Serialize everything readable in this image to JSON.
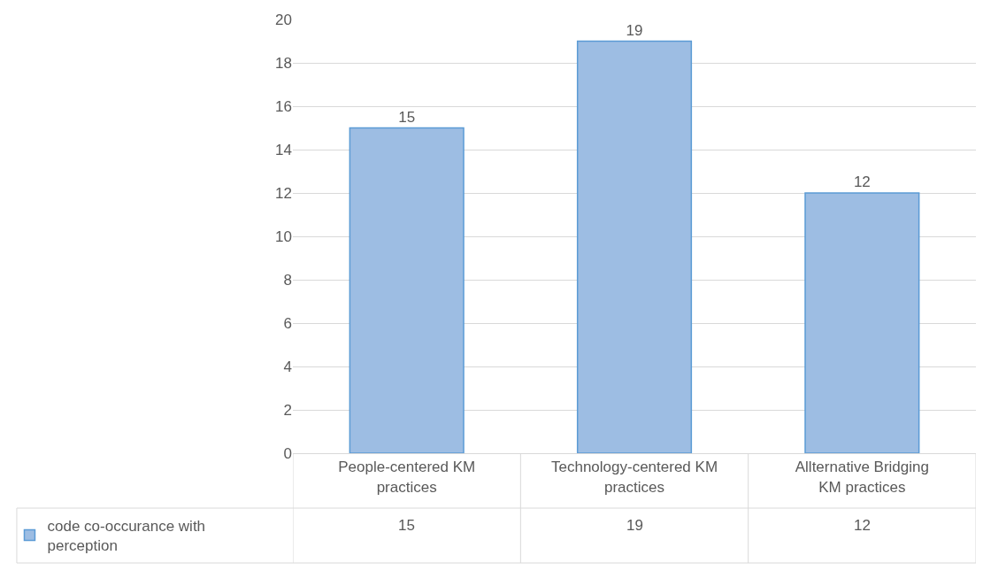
{
  "chart_data": {
    "type": "bar",
    "categories": [
      "People-centered KM practices",
      "Technology-centered KM practices",
      "Allternative Bridging KM practices"
    ],
    "series": [
      {
        "name": "code co-occurance with perception",
        "color": "#9dbde3",
        "values": [
          15,
          19,
          12
        ],
        "value_labels": [
          "15",
          "19",
          "12"
        ]
      }
    ],
    "ylim": [
      0,
      20
    ],
    "yticks": [
      0,
      2,
      4,
      6,
      8,
      10,
      12,
      14,
      16,
      18,
      20
    ],
    "annotations": [
      "15",
      "19",
      "12"
    ],
    "grid": "y",
    "legend": "bottom left"
  }
}
